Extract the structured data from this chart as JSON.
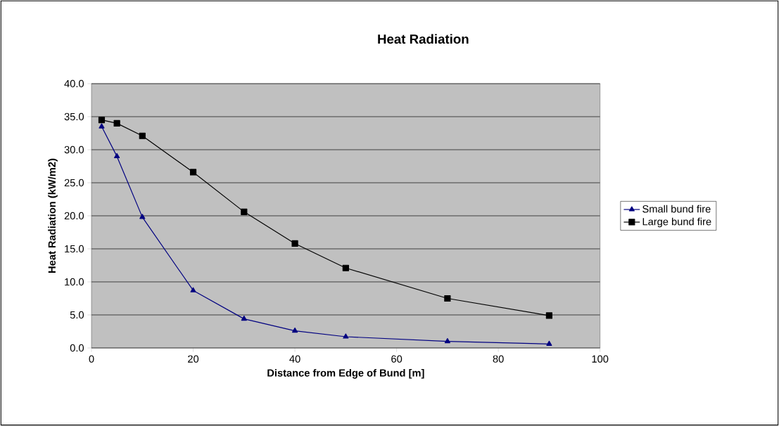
{
  "chart_data": {
    "type": "line",
    "title": "Heat Radiation",
    "xlabel": "Distance from Edge of Bund [m]",
    "ylabel": "Heat Radiation (kW/m2)",
    "x": [
      2,
      5,
      10,
      20,
      30,
      40,
      50,
      70,
      90
    ],
    "series": [
      {
        "name": "Small bund fire",
        "color": "#000080",
        "marker": "triangle",
        "values": [
          33.5,
          29.0,
          19.8,
          8.7,
          4.4,
          2.6,
          1.7,
          1.0,
          0.6
        ]
      },
      {
        "name": "Large bund fire",
        "color": "#000000",
        "marker": "square",
        "values": [
          34.5,
          34.0,
          32.1,
          26.6,
          20.6,
          15.8,
          12.1,
          7.5,
          4.9
        ]
      }
    ],
    "xlim": [
      0,
      100
    ],
    "xticks": [
      0,
      20,
      40,
      60,
      80,
      100
    ],
    "ylim": [
      0,
      40
    ],
    "yticks": [
      {
        "value": 0,
        "label": "0.0"
      },
      {
        "value": 5,
        "label": "5.0"
      },
      {
        "value": 10,
        "label": "10.0"
      },
      {
        "value": 15,
        "label": "15.0"
      },
      {
        "value": 20,
        "label": "20.0"
      },
      {
        "value": 25,
        "label": "25.0"
      },
      {
        "value": 30,
        "label": "30.0"
      },
      {
        "value": 35,
        "label": "35.0"
      },
      {
        "value": 40,
        "label": "40.0"
      }
    ],
    "grid": "y",
    "legend": "right",
    "line_style": "solid"
  }
}
